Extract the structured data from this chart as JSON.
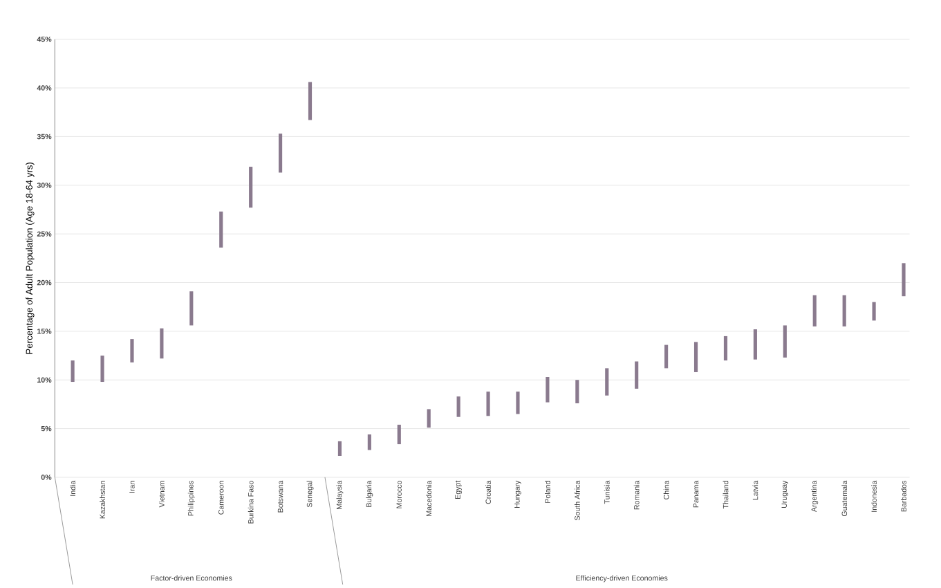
{
  "chart_data": {
    "type": "bar",
    "ylabel": "Percentage of Adult Population (Age 18-64 yrs)",
    "categories": [
      "India",
      "Kazakhstan",
      "Iran",
      "Vietnam",
      "Philippines",
      "Cameroon",
      "Burkina Faso",
      "Botswana",
      "Senegal",
      "Malaysia",
      "Bulgaria",
      "Morocco",
      "Macedonia",
      "Egypt",
      "Croatia",
      "Hungary",
      "Poland",
      "South Africa",
      "Tunisia",
      "Romania",
      "China",
      "Panama",
      "Thailand",
      "Latvia",
      "Uruguay",
      "Argentina",
      "Guatemala",
      "Indonesia",
      "Barbados"
    ],
    "base": [
      9.8,
      9.8,
      11.8,
      12.2,
      15.6,
      23.6,
      27.7,
      31.3,
      36.7,
      2.2,
      2.8,
      3.4,
      5.1,
      6.2,
      6.3,
      6.5,
      7.7,
      7.6,
      8.4,
      9.1,
      11.2,
      10.8,
      12.0,
      12.1,
      12.3,
      15.5,
      15.5,
      16.1,
      18.6
    ],
    "values": [
      2.2,
      2.7,
      2.4,
      3.1,
      3.5,
      3.7,
      4.2,
      4.0,
      3.9,
      1.5,
      1.6,
      2.0,
      1.9,
      2.1,
      2.5,
      2.3,
      2.6,
      2.4,
      2.8,
      2.8,
      2.4,
      3.1,
      2.5,
      3.1,
      3.3,
      3.2,
      3.2,
      1.9,
      3.4
    ],
    "color": "#8a7a8e",
    "ylim": [
      0,
      45
    ],
    "yticks": [
      {
        "value": 0,
        "label": "0%"
      },
      {
        "value": 5,
        "label": "5%"
      },
      {
        "value": 10,
        "label": "10%"
      },
      {
        "value": 15,
        "label": "15%"
      },
      {
        "value": 20,
        "label": "20%"
      },
      {
        "value": 25,
        "label": "25%"
      },
      {
        "value": 30,
        "label": "30%"
      },
      {
        "value": 35,
        "label": "35%"
      },
      {
        "value": 40,
        "label": "40%"
      },
      {
        "value": 45,
        "label": "45%"
      }
    ],
    "grid": "y",
    "annotations": [
      "Factor-driven Economies",
      "Efficiency-driven Economies"
    ]
  }
}
